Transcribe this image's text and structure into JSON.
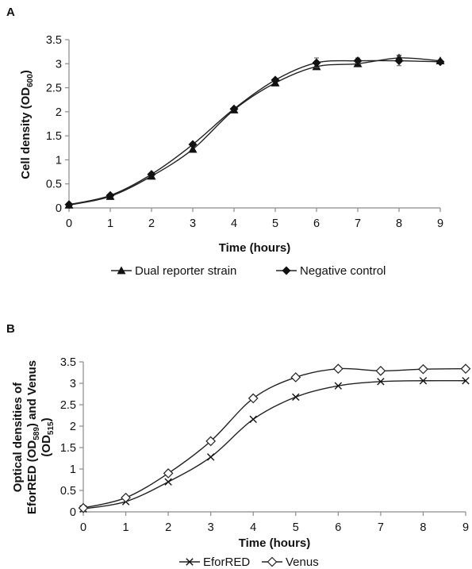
{
  "chart_data": [
    {
      "panel_label": "A",
      "type": "line",
      "x": [
        0,
        1,
        2,
        3,
        4,
        5,
        6,
        7,
        8,
        9
      ],
      "xticks": [
        "0",
        "1",
        "2",
        "3",
        "4",
        "5",
        "6",
        "7",
        "8",
        "9"
      ],
      "yticks": [
        "0",
        "0.5",
        "1",
        "1.5",
        "2",
        "2.5",
        "3",
        "3.5"
      ],
      "ylim": [
        0,
        3.5
      ],
      "xlim": [
        0,
        9
      ],
      "xlabel": "Time (hours)",
      "ylabel": {
        "main": "Cell density (OD",
        "sub": "600",
        "end": ")"
      },
      "grid": false,
      "legend_position": "bottom",
      "series": [
        {
          "name": "Dual reporter strain",
          "marker": "triangle",
          "values": [
            0.06,
            0.24,
            0.66,
            1.22,
            2.04,
            2.6,
            2.94,
            3.0,
            3.12,
            3.06
          ],
          "err": [
            0,
            0,
            0,
            0,
            0,
            0,
            0,
            0.05,
            0.06,
            0
          ]
        },
        {
          "name": "Negative control",
          "marker": "diamond",
          "values": [
            0.07,
            0.26,
            0.7,
            1.32,
            2.06,
            2.66,
            3.02,
            3.06,
            3.06,
            3.04
          ],
          "err": [
            0,
            0,
            0,
            0,
            0,
            0,
            0.1,
            0.06,
            0.1,
            0
          ]
        }
      ]
    },
    {
      "panel_label": "B",
      "type": "line",
      "x": [
        0,
        1,
        2,
        3,
        4,
        5,
        6,
        7,
        8,
        9
      ],
      "xticks": [
        "0",
        "1",
        "2",
        "3",
        "4",
        "5",
        "6",
        "7",
        "8",
        "9"
      ],
      "yticks": [
        "0",
        "0.5",
        "1",
        "1.5",
        "2",
        "2.5",
        "3",
        "3.5"
      ],
      "ylim": [
        0,
        3.5
      ],
      "xlim": [
        0,
        9
      ],
      "xlabel": "Time (hours)",
      "ylabel": {
        "line1": "Optical densities of",
        "line2_main": "EforRED (OD",
        "line2_sub": "589",
        "line2_end": ") and Venus",
        "line3_main": "(OD",
        "line3_sub": "515",
        "line3_end": ")"
      },
      "grid": false,
      "legend_position": "bottom",
      "series": [
        {
          "name": "EforRED",
          "marker": "x",
          "values": [
            0.07,
            0.24,
            0.7,
            1.28,
            2.16,
            2.68,
            2.94,
            3.04,
            3.06,
            3.06
          ],
          "err": [
            0,
            0,
            0,
            0,
            0,
            0,
            0,
            0,
            0,
            0
          ]
        },
        {
          "name": "Venus",
          "marker": "open-diamond",
          "values": [
            0.09,
            0.33,
            0.9,
            1.65,
            2.65,
            3.14,
            3.34,
            3.29,
            3.33,
            3.34
          ],
          "err": [
            0,
            0,
            0,
            0,
            0,
            0,
            0.06,
            0.06,
            0,
            0
          ]
        }
      ]
    }
  ]
}
